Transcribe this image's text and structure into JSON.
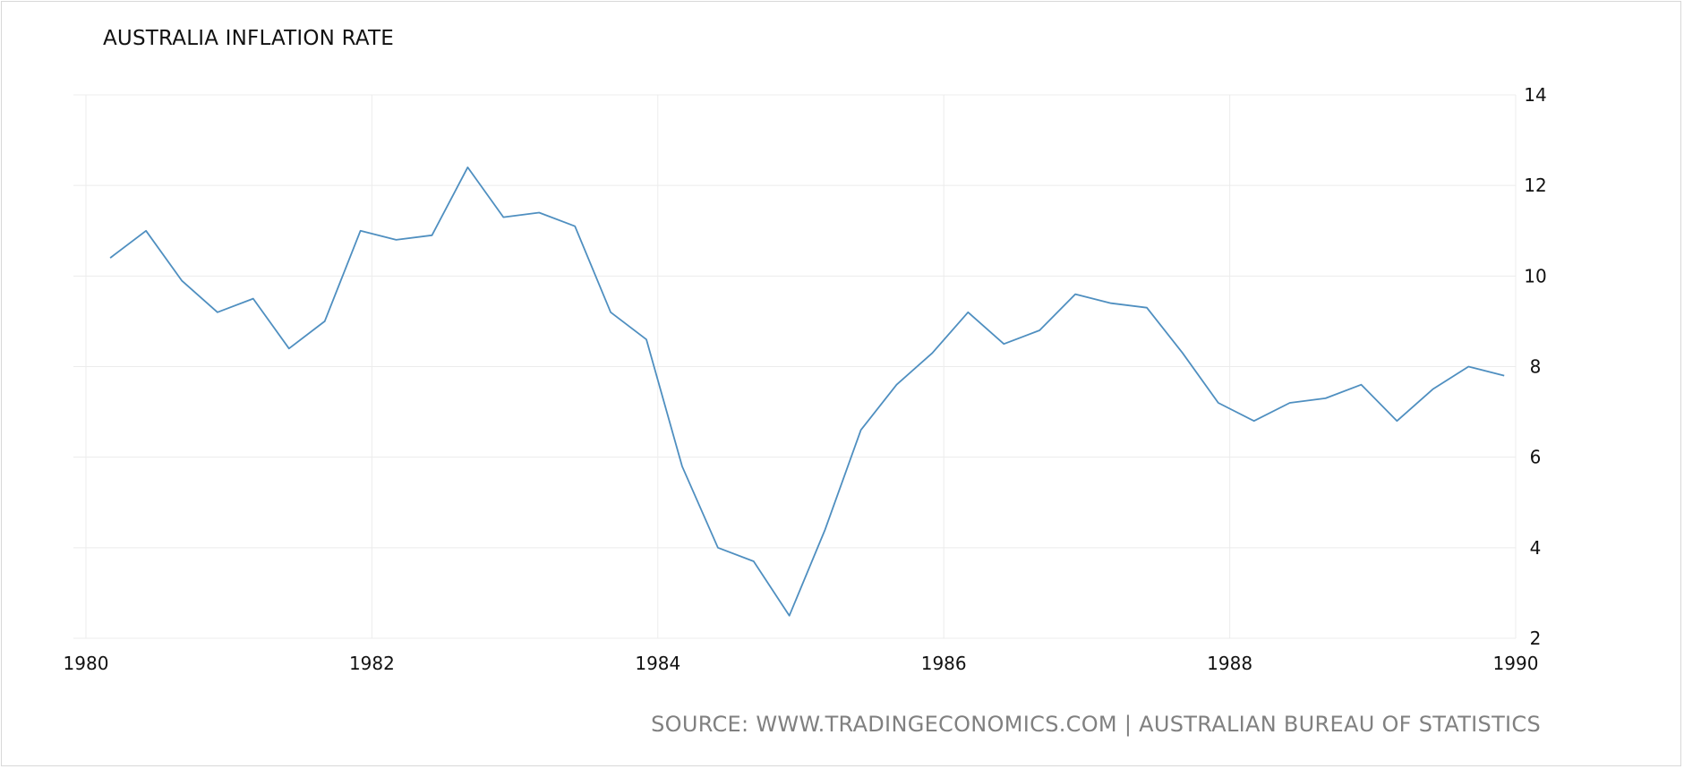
{
  "chart_data": {
    "type": "line",
    "title": "AUSTRALIA INFLATION RATE",
    "source": "SOURCE: WWW.TRADINGECONOMICS.COM | AUSTRALIAN BUREAU OF STATISTICS",
    "xlabel": "",
    "ylabel": "",
    "xlim": [
      1980,
      1990
    ],
    "ylim": [
      2,
      14
    ],
    "x_ticks": [
      "1980",
      "1982",
      "1984",
      "1986",
      "1988",
      "1990"
    ],
    "y_ticks": [
      "14",
      "12",
      "10",
      "8",
      "6",
      "4",
      "2"
    ],
    "grid": true,
    "line_color": "#4f8fc0",
    "series": [
      {
        "x": [
          1980.17,
          1980.42,
          1980.67,
          1980.92,
          1981.17,
          1981.42,
          1981.67,
          1981.92,
          1982.17,
          1982.42,
          1982.67,
          1982.92,
          1983.17,
          1983.42,
          1983.67,
          1983.92,
          1984.17,
          1984.42,
          1984.67,
          1984.92,
          1985.17,
          1985.42,
          1985.67,
          1985.92,
          1986.17,
          1986.42,
          1986.67,
          1986.92,
          1987.17,
          1987.42,
          1987.67,
          1987.92,
          1988.17,
          1988.42,
          1988.67,
          1988.92,
          1989.17,
          1989.42,
          1989.67,
          1989.92
        ],
        "values": [
          10.4,
          11.0,
          9.9,
          9.2,
          9.5,
          8.4,
          9.0,
          11.0,
          10.8,
          10.9,
          12.4,
          11.3,
          11.4,
          11.1,
          9.2,
          8.6,
          5.8,
          4.0,
          3.7,
          2.5,
          4.4,
          6.6,
          7.6,
          8.3,
          9.2,
          8.5,
          8.8,
          9.6,
          9.4,
          9.3,
          8.3,
          7.2,
          6.8,
          7.2,
          7.3,
          7.6,
          6.8,
          7.5,
          8.0,
          7.8
        ]
      }
    ]
  }
}
